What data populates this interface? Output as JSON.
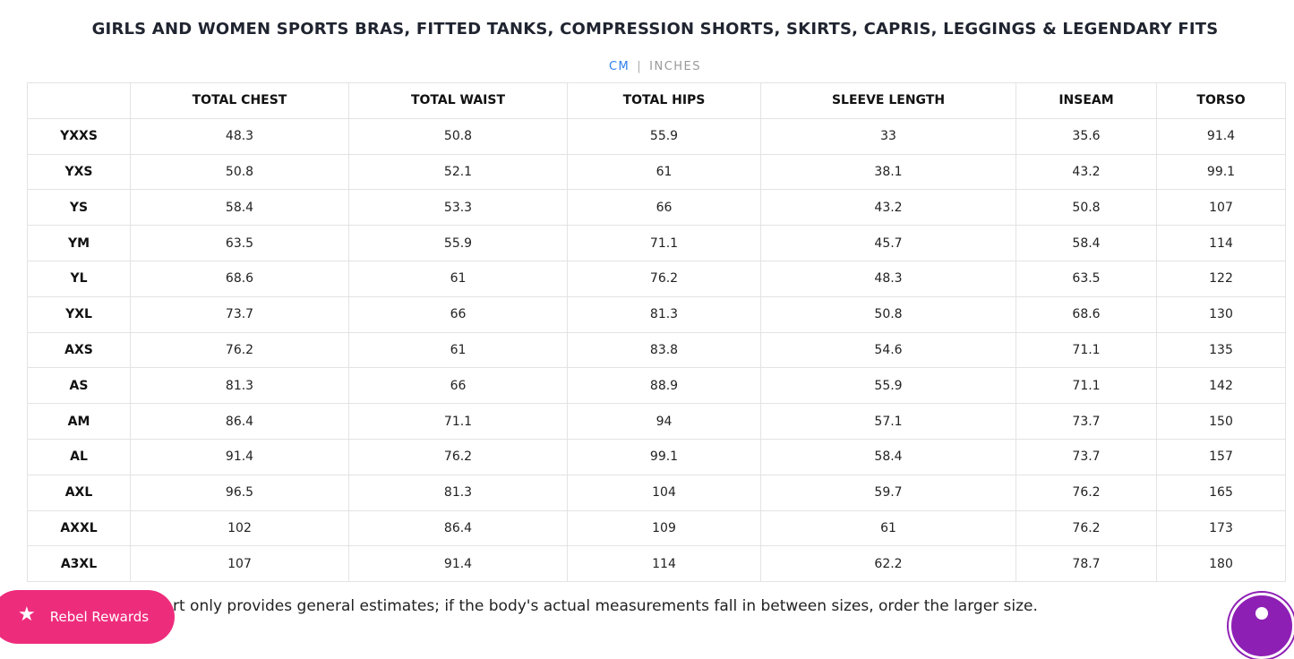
{
  "title": "GIRLS AND WOMEN SPORTS BRAS, FITTED TANKS, COMPRESSION SHORTS, SKIRTS, CAPRIS, LEGGINGS & LEGENDARY FITS",
  "units": {
    "active": "CM",
    "separator": "|",
    "inactive": "INCHES",
    "active_color": "#2f80ed"
  },
  "table": {
    "headers": [
      "",
      "TOTAL CHEST",
      "TOTAL WAIST",
      "TOTAL HIPS",
      "SLEEVE LENGTH",
      "INSEAM",
      "TORSO"
    ],
    "rows": [
      [
        "YXXS",
        "48.3",
        "50.8",
        "55.9",
        "33",
        "35.6",
        "91.4"
      ],
      [
        "YXS",
        "50.8",
        "52.1",
        "61",
        "38.1",
        "43.2",
        "99.1"
      ],
      [
        "YS",
        "58.4",
        "53.3",
        "66",
        "43.2",
        "50.8",
        "107"
      ],
      [
        "YM",
        "63.5",
        "55.9",
        "71.1",
        "45.7",
        "58.4",
        "114"
      ],
      [
        "YL",
        "68.6",
        "61",
        "76.2",
        "48.3",
        "63.5",
        "122"
      ],
      [
        "YXL",
        "73.7",
        "66",
        "81.3",
        "50.8",
        "68.6",
        "130"
      ],
      [
        "AXS",
        "76.2",
        "61",
        "83.8",
        "54.6",
        "71.1",
        "135"
      ],
      [
        "AS",
        "81.3",
        "66",
        "88.9",
        "55.9",
        "71.1",
        "142"
      ],
      [
        "AM",
        "86.4",
        "71.1",
        "94",
        "57.1",
        "73.7",
        "150"
      ],
      [
        "AL",
        "91.4",
        "76.2",
        "99.1",
        "58.4",
        "73.7",
        "157"
      ],
      [
        "AXL",
        "96.5",
        "81.3",
        "104",
        "59.7",
        "76.2",
        "165"
      ],
      [
        "AXXL",
        "102",
        "86.4",
        "109",
        "61",
        "76.2",
        "173"
      ],
      [
        "A3XL",
        "107",
        "91.4",
        "114",
        "62.2",
        "78.7",
        "180"
      ]
    ]
  },
  "note": "rt only provides general estimates; if the body's actual measurements fall in between sizes, order the larger size.",
  "rewards_button": {
    "label": "Rebel Rewards",
    "icon": "star-icon",
    "color": "#ee2c7c"
  },
  "accessibility_button": {
    "icon": "accessibility-icon",
    "color": "#8e1fb5"
  }
}
